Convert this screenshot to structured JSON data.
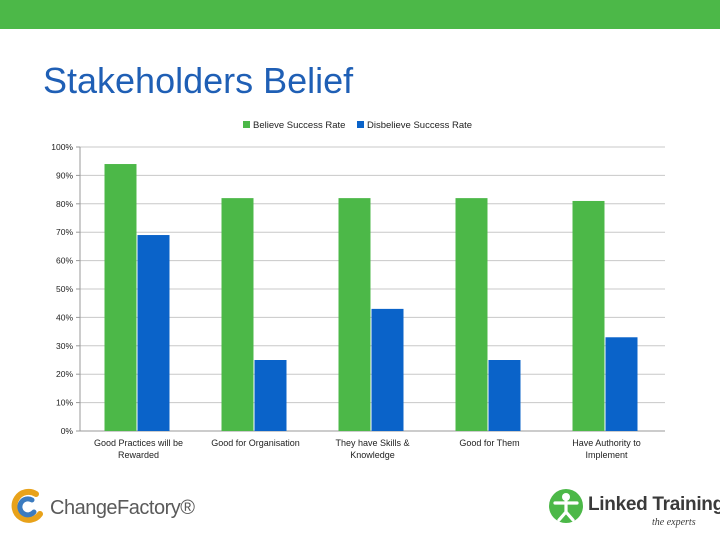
{
  "slide": {
    "title": "Stakeholders Belief",
    "accent_color": "#4cb848",
    "title_color": "#1f5fb5"
  },
  "logos": {
    "left": {
      "text": "ChangeFactory®",
      "icon": "change-factory-swirl-icon"
    },
    "right": {
      "text": "Linked Training",
      "sub": "the experts",
      "icon": "linked-training-figure-icon"
    }
  },
  "chart_data": {
    "type": "bar",
    "categories": [
      [
        "Good Practices will be",
        "Rewarded"
      ],
      [
        "Good for Organisation"
      ],
      [
        "They have Skills &",
        "Knowledge"
      ],
      [
        "Good for Them"
      ],
      [
        "Have Authority to",
        "Implement"
      ]
    ],
    "series": [
      {
        "name": "Believe Success Rate",
        "color": "#4cb848",
        "values": [
          94,
          82,
          82,
          82,
          81
        ]
      },
      {
        "name": "Disbelieve Success Rate",
        "color": "#0a63c9",
        "values": [
          69,
          25,
          43,
          25,
          33
        ]
      }
    ],
    "y_ticks": [
      "0%",
      "10%",
      "20%",
      "30%",
      "40%",
      "50%",
      "60%",
      "70%",
      "80%",
      "90%",
      "100%"
    ],
    "ylim": [
      0,
      100
    ],
    "legend_position": "top",
    "grid": true
  }
}
